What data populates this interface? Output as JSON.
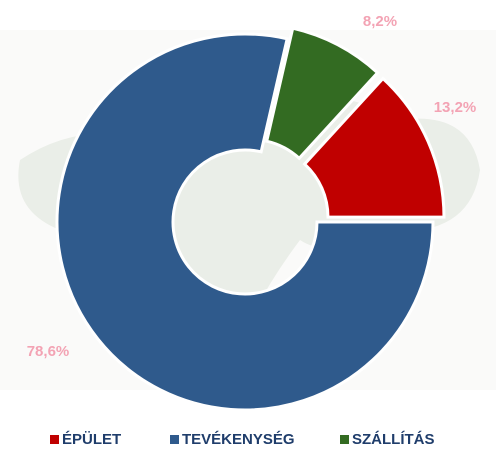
{
  "chart_data": {
    "type": "donut",
    "categories": [
      "ÉPÜLET",
      "TEVÉKENYSÉG",
      "SZÁLLÍTÁS"
    ],
    "values": [
      13.2,
      78.6,
      8.2
    ],
    "value_labels": [
      "13,2%",
      "78,6%",
      "8,2%"
    ],
    "colors": [
      "#c00000",
      "#2f5a8c",
      "#336b22"
    ]
  }
}
